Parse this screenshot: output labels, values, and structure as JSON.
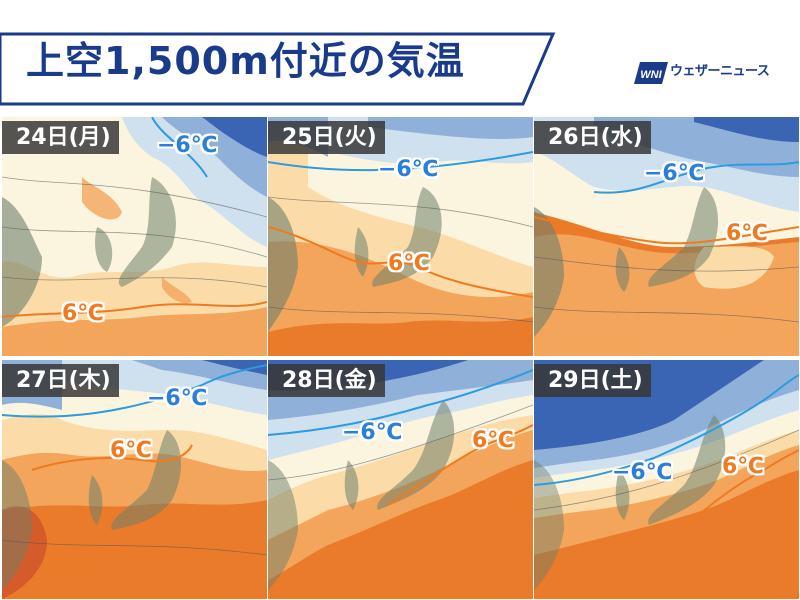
{
  "header": {
    "title": "上空1,500m付近の気温",
    "brand": "ウェザーニュース",
    "brand_mark": "WNI",
    "title_color": "#1a3a8a"
  },
  "colors": {
    "cold_deep": "#3a64b4",
    "cold_mid": "#8fb0d8",
    "cold_light": "#cfe0ee",
    "neutral": "#fbf5e0",
    "warm_light": "#fbdca8",
    "warm_mid": "#f3a55c",
    "warm_deep": "#ea7b2b",
    "land_overlay": "#6f7f6a",
    "iso_cold": "#2c7fd8",
    "iso_warm": "#ef7a20"
  },
  "panels": [
    {
      "day": "24日(月)",
      "cold_label": "−6℃",
      "warm_label": "6℃"
    },
    {
      "day": "25日(火)",
      "cold_label": "−6℃",
      "warm_label": "6℃"
    },
    {
      "day": "26日(水)",
      "cold_label": "−6℃",
      "warm_label": "6℃"
    },
    {
      "day": "27日(木)",
      "cold_label": "−6℃",
      "warm_label": "6℃"
    },
    {
      "day": "28日(金)",
      "cold_label": "−6℃",
      "warm_label": "6℃"
    },
    {
      "day": "29日(土)",
      "cold_label": "−6℃",
      "warm_label": "6℃"
    }
  ]
}
